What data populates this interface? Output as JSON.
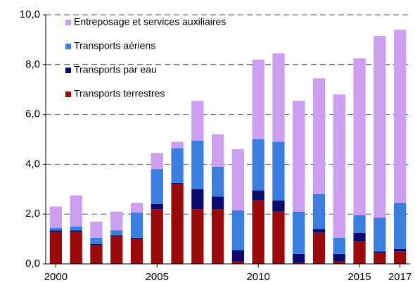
{
  "chart_data": {
    "type": "stacked_bar",
    "categories": [
      "2000",
      null,
      null,
      null,
      null,
      "2005",
      null,
      null,
      null,
      null,
      "2010",
      null,
      null,
      null,
      null,
      "2015",
      null,
      "2017"
    ],
    "series": [
      {
        "name": "Transports terrestres",
        "color": "#9b0a0a",
        "values": [
          1.3,
          1.3,
          0.75,
          1.1,
          1.0,
          2.2,
          3.2,
          2.2,
          2.2,
          0.1,
          2.55,
          2.1,
          0.05,
          1.25,
          0.1,
          0.9,
          0.45,
          0.5
        ]
      },
      {
        "name": "Transports par eau",
        "color": "#0a0a6e",
        "values": [
          0.05,
          0.05,
          0.05,
          0.05,
          0.05,
          0.2,
          0.05,
          0.8,
          0.5,
          0.45,
          0.4,
          0.45,
          0.35,
          0.15,
          0.3,
          0.35,
          0.05,
          0.1
        ]
      },
      {
        "name": "Transports aériens",
        "color": "#3a7fe0",
        "values": [
          0.1,
          0.15,
          0.25,
          0.2,
          1.0,
          1.4,
          1.4,
          1.95,
          1.2,
          1.6,
          2.05,
          2.35,
          1.7,
          1.4,
          0.65,
          0.7,
          1.35,
          1.85
        ]
      },
      {
        "name": "Entreposage et services auxiliaires",
        "color": "#cc9ff0",
        "values": [
          0.85,
          1.25,
          0.65,
          0.75,
          0.4,
          0.65,
          0.25,
          1.6,
          1.3,
          2.45,
          3.2,
          3.55,
          4.45,
          4.65,
          5.75,
          6.3,
          7.3,
          6.95
        ]
      }
    ],
    "ylim": [
      0,
      10
    ],
    "yticks": [
      {
        "value": 0,
        "label": "0,0"
      },
      {
        "value": 2,
        "label": "2,0"
      },
      {
        "value": 4,
        "label": "4,0"
      },
      {
        "value": 6,
        "label": "6,0"
      },
      {
        "value": 8,
        "label": "8,0"
      },
      {
        "value": 10,
        "label": "10,0"
      }
    ],
    "grid": true
  }
}
